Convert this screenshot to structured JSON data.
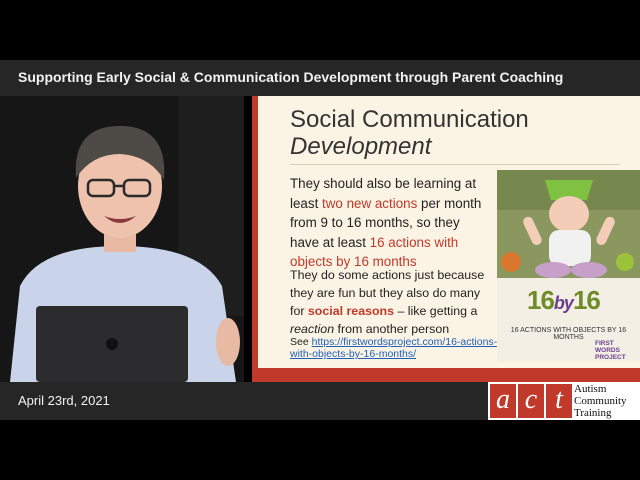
{
  "title_bar": {
    "text": "Supporting Early Social & Communication Development through Parent Coaching"
  },
  "slide": {
    "title_line1": "Social Communication",
    "title_line2": "Development",
    "para1": {
      "t1": "They should also be learning at least ",
      "h1": "two new actions",
      "t2": " per month from 9 to 16 months, so they have at least ",
      "h2": "16 actions with objects by 16 months"
    },
    "para2": {
      "t1": "They do some actions just because they are fun but they also do many for ",
      "h1": "social reasons",
      "t2": " – like getting a ",
      "em": "reaction",
      "t3": " from another person"
    },
    "see": {
      "label": "See ",
      "link": "https://firstwordsproject.com/16-actions-with-objects-by-16-months/"
    },
    "image": {
      "brand_16a": "16",
      "brand_by": "by",
      "brand_16b": "16",
      "caption": "16 ACTIONS WITH OBJECTS BY 16 MONTHS",
      "logo_text": "FIRST WORDS PROJECT"
    }
  },
  "bottom_bar": {
    "date": "April 23rd, 2021"
  },
  "logo": {
    "letters": [
      "a",
      "c",
      "t"
    ],
    "line1": "Autism",
    "line2": "Community",
    "line3": "Training"
  }
}
